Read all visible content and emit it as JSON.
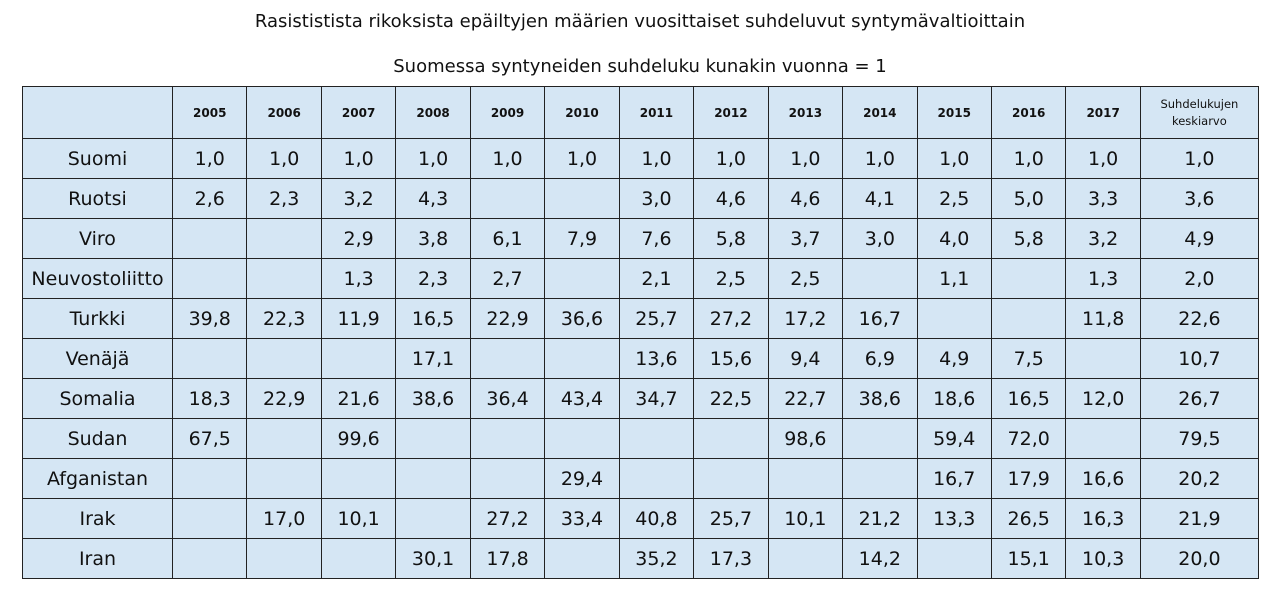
{
  "title": "Rasististista rikoksista epäiltyjen määrien vuosittaiset suhdeluvut syntymävaltioittain",
  "subtitle": "Suomessa syntyneiden suhdeluku kunakin vuonna = 1",
  "table": {
    "header": [
      "2005",
      "2006",
      "2007",
      "2008",
      "2009",
      "2010",
      "2011",
      "2012",
      "2013",
      "2014",
      "2015",
      "2016",
      "2017",
      "Suhdelukujen keskiarvo"
    ],
    "rows": [
      {
        "label": "Suomi",
        "cells": [
          "1,0",
          "1,0",
          "1,0",
          "1,0",
          "1,0",
          "1,0",
          "1,0",
          "1,0",
          "1,0",
          "1,0",
          "1,0",
          "1,0",
          "1,0",
          "1,0"
        ]
      },
      {
        "label": "Ruotsi",
        "cells": [
          "2,6",
          "2,3",
          "3,2",
          "4,3",
          null,
          null,
          "3,0",
          "4,6",
          "4,6",
          "4,1",
          "2,5",
          "5,0",
          "3,3",
          "3,6"
        ]
      },
      {
        "label": "Viro",
        "cells": [
          null,
          null,
          "2,9",
          "3,8",
          "6,1",
          "7,9",
          "7,6",
          "5,8",
          "3,7",
          "3,0",
          "4,0",
          "5,8",
          "3,2",
          "4,9"
        ]
      },
      {
        "label": "Neuvostoliitto",
        "cells": [
          null,
          null,
          "1,3",
          "2,3",
          "2,7",
          null,
          "2,1",
          "2,5",
          "2,5",
          null,
          "1,1",
          null,
          "1,3",
          "2,0"
        ]
      },
      {
        "label": "Turkki",
        "cells": [
          "39,8",
          "22,3",
          "11,9",
          "16,5",
          "22,9",
          "36,6",
          "25,7",
          "27,2",
          "17,2",
          "16,7",
          null,
          null,
          "11,8",
          "22,6"
        ]
      },
      {
        "label": "Venäjä",
        "cells": [
          null,
          null,
          null,
          "17,1",
          null,
          null,
          "13,6",
          "15,6",
          "9,4",
          "6,9",
          "4,9",
          "7,5",
          null,
          "10,7"
        ]
      },
      {
        "label": "Somalia",
        "cells": [
          "18,3",
          "22,9",
          "21,6",
          "38,6",
          "36,4",
          "43,4",
          "34,7",
          "22,5",
          "22,7",
          "38,6",
          "18,6",
          "16,5",
          "12,0",
          "26,7"
        ]
      },
      {
        "label": "Sudan",
        "cells": [
          "67,5",
          null,
          "99,6",
          null,
          null,
          null,
          null,
          null,
          "98,6",
          null,
          "59,4",
          "72,0",
          null,
          "79,5"
        ]
      },
      {
        "label": "Afganistan",
        "cells": [
          null,
          null,
          null,
          null,
          null,
          "29,4",
          null,
          null,
          null,
          null,
          "16,7",
          "17,9",
          "16,6",
          "20,2"
        ]
      },
      {
        "label": "Irak",
        "cells": [
          null,
          "17,0",
          "10,1",
          null,
          "27,2",
          "33,4",
          "40,8",
          "25,7",
          "10,1",
          "21,2",
          "13,3",
          "26,5",
          "16,3",
          "21,9"
        ]
      },
      {
        "label": "Iran",
        "cells": [
          null,
          null,
          null,
          "30,1",
          "17,8",
          null,
          "35,2",
          "17,3",
          null,
          "14,2",
          null,
          "15,1",
          "10,3",
          "20,0"
        ]
      }
    ]
  }
}
